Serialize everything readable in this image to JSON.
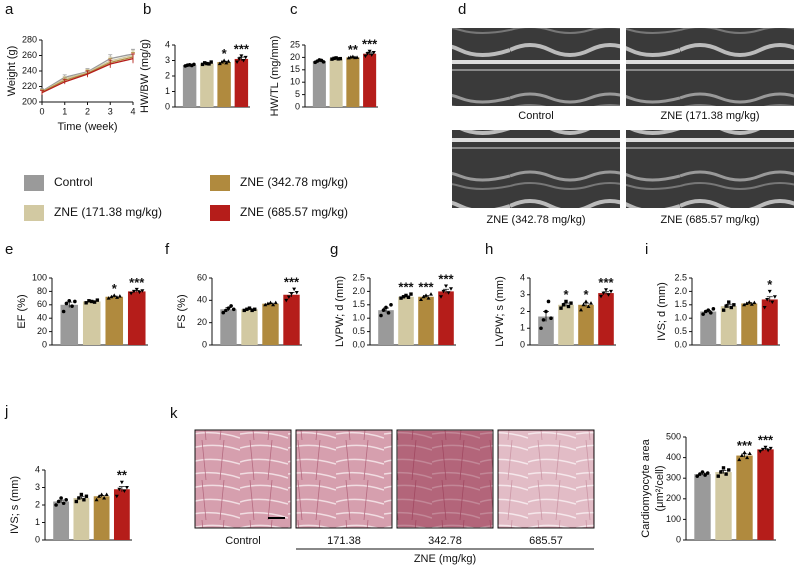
{
  "chart_data": [
    {
      "type": "line",
      "panel": "a",
      "xlabel": "Time (week)",
      "ylabel": "Weight (g)",
      "x": [
        0,
        1,
        2,
        3,
        4
      ],
      "xlim": [
        0,
        4
      ],
      "xticks": [
        0,
        1,
        2,
        3,
        4
      ],
      "ylim": [
        200,
        280
      ],
      "yticks": [
        200,
        220,
        240,
        260,
        280
      ],
      "series": [
        {
          "values": [
            214,
            232,
            239,
            256,
            262
          ],
          "errors": [
            3,
            3,
            4,
            5,
            6
          ]
        },
        {
          "values": [
            213,
            230,
            238,
            253,
            260
          ],
          "errors": [
            3,
            3,
            4,
            5,
            6
          ]
        },
        {
          "values": [
            213,
            228,
            237,
            251,
            258
          ],
          "errors": [
            3,
            3,
            4,
            5,
            6
          ]
        },
        {
          "values": [
            212,
            226,
            236,
            249,
            256
          ],
          "errors": [
            3,
            3,
            4,
            5,
            6
          ]
        }
      ]
    },
    {
      "type": "bar",
      "panel": "b",
      "ylabel": "HW/BW (mg/g)",
      "ylim": [
        0,
        4
      ],
      "yticks": [
        0,
        1,
        2,
        3,
        4
      ],
      "values": [
        2.7,
        2.8,
        2.9,
        3.1
      ],
      "errors": [
        0.03,
        0.03,
        0.05,
        0.12
      ],
      "points": [
        [
          2.65,
          2.7,
          2.72,
          2.68,
          2.75
        ],
        [
          2.75,
          2.85,
          2.8,
          2.78,
          2.9
        ],
        [
          2.8,
          2.9,
          3.0,
          2.85,
          2.95
        ],
        [
          2.9,
          3.1,
          3.3,
          3.0,
          3.2
        ]
      ],
      "annotations": [
        null,
        null,
        "*",
        "***"
      ]
    },
    {
      "type": "bar",
      "panel": "c",
      "ylabel": "HW/TL (mg/mm)",
      "ylim": [
        0,
        25
      ],
      "yticks": [
        0,
        5,
        10,
        15,
        20,
        25
      ],
      "values": [
        18.5,
        19.5,
        20,
        21.5
      ],
      "errors": [
        0.3,
        0.2,
        0.2,
        0.6
      ],
      "points": [
        [
          18,
          18.5,
          19,
          18.8,
          18.2
        ],
        [
          19.3,
          19.6,
          19.8,
          19.4,
          19.5
        ],
        [
          19.8,
          20.1,
          20.3,
          19.9,
          20.0
        ],
        [
          20.5,
          21.5,
          22.5,
          21,
          22
        ]
      ],
      "annotations": [
        null,
        null,
        "**",
        "***"
      ]
    },
    {
      "type": "bar",
      "panel": "e",
      "ylabel": "EF (%)",
      "ylim": [
        0,
        100
      ],
      "yticks": [
        0,
        20,
        40,
        60,
        80,
        100
      ],
      "values": [
        60,
        65,
        72,
        80
      ],
      "errors": [
        4,
        1,
        1,
        1.5
      ],
      "points": [
        [
          50,
          62,
          66,
          58,
          65
        ],
        [
          63,
          66,
          65,
          64,
          67
        ],
        [
          70,
          72,
          74,
          71,
          73
        ],
        [
          77,
          80,
          83,
          79,
          81
        ]
      ],
      "annotations": [
        null,
        null,
        "*",
        "***"
      ]
    },
    {
      "type": "bar",
      "panel": "f",
      "ylabel": "FS (%)",
      "ylim": [
        0,
        60
      ],
      "yticks": [
        0,
        20,
        40,
        60
      ],
      "values": [
        32,
        32,
        37,
        45
      ],
      "errors": [
        1.5,
        0.5,
        0.5,
        2
      ],
      "points": [
        [
          29,
          31,
          33,
          35,
          32
        ],
        [
          31,
          32,
          33,
          31,
          32
        ],
        [
          36,
          37,
          38,
          36,
          38
        ],
        [
          40,
          43,
          46,
          50,
          47
        ]
      ],
      "annotations": [
        null,
        null,
        null,
        "***"
      ]
    },
    {
      "type": "bar",
      "panel": "g",
      "ylabel": "LVPW; d (mm)",
      "ylim": [
        0,
        2.5
      ],
      "yticks": [
        {
          "value": 0,
          "label": "0.0"
        },
        0.5,
        {
          "value": 1,
          "label": "1.0"
        },
        1.5,
        {
          "value": 2,
          "label": "2.0"
        },
        2.5
      ],
      "values": [
        1.3,
        1.8,
        1.8,
        2.0
      ],
      "errors": [
        0.08,
        0.03,
        0.04,
        0.08
      ],
      "points": [
        [
          1.1,
          1.3,
          1.4,
          1.2,
          1.5
        ],
        [
          1.75,
          1.8,
          1.85,
          1.78,
          1.9
        ],
        [
          1.7,
          1.8,
          1.85,
          1.75,
          1.9
        ],
        [
          1.8,
          2.0,
          2.2,
          1.95,
          2.1
        ]
      ],
      "annotations": [
        null,
        "***",
        "***",
        "***"
      ]
    },
    {
      "type": "bar",
      "panel": "h",
      "ylabel": "LVPW; s (mm)",
      "ylim": [
        0,
        4
      ],
      "yticks": [
        0,
        1,
        2,
        3,
        4
      ],
      "values": [
        1.7,
        2.4,
        2.4,
        3.1
      ],
      "errors": [
        0.3,
        0.1,
        0.1,
        0.08
      ],
      "points": [
        [
          1.0,
          1.5,
          2.0,
          2.6,
          1.6
        ],
        [
          2.2,
          2.4,
          2.6,
          2.3,
          2.5
        ],
        [
          2.1,
          2.4,
          2.6,
          2.3,
          2.5
        ],
        [
          2.9,
          3.1,
          3.3,
          3.0,
          3.2
        ]
      ],
      "annotations": [
        null,
        "*",
        "*",
        "***"
      ]
    },
    {
      "type": "bar",
      "panel": "i",
      "ylabel": "IVS; d (mm)",
      "ylim": [
        0,
        2.5
      ],
      "yticks": [
        {
          "value": 0,
          "label": "0.0"
        },
        0.5,
        {
          "value": 1,
          "label": "1.0"
        },
        1.5,
        {
          "value": 2,
          "label": "2.0"
        },
        2.5
      ],
      "values": [
        1.25,
        1.45,
        1.55,
        1.7
      ],
      "errors": [
        0.04,
        0.07,
        0.03,
        0.1
      ],
      "points": [
        [
          1.15,
          1.25,
          1.3,
          1.2,
          1.35
        ],
        [
          1.3,
          1.45,
          1.6,
          1.4,
          1.5
        ],
        [
          1.5,
          1.55,
          1.6,
          1.52,
          1.58
        ],
        [
          1.4,
          1.7,
          2.0,
          1.6,
          1.8
        ]
      ],
      "annotations": [
        null,
        null,
        null,
        "*"
      ]
    },
    {
      "type": "bar",
      "panel": "j",
      "ylabel": "IVS; s (mm)",
      "ylim": [
        0,
        4
      ],
      "yticks": [
        0,
        1,
        2,
        3,
        4
      ],
      "values": [
        2.2,
        2.4,
        2.5,
        2.9
      ],
      "errors": [
        0.08,
        0.07,
        0.05,
        0.15
      ],
      "points": [
        [
          2.0,
          2.2,
          2.4,
          2.1,
          2.3
        ],
        [
          2.2,
          2.4,
          2.6,
          2.3,
          2.5
        ],
        [
          2.3,
          2.5,
          2.6,
          2.4,
          2.6
        ],
        [
          2.5,
          2.9,
          3.3,
          2.8,
          3.0
        ]
      ],
      "annotations": [
        null,
        null,
        null,
        "**"
      ]
    },
    {
      "type": "bar",
      "ylabel": [
        "Cardiomyocyte area",
        "(μm²/cell)"
      ],
      "ylim": [
        0,
        500
      ],
      "yticks": [
        0,
        100,
        200,
        300,
        400,
        500
      ],
      "values": [
        320,
        330,
        410,
        440
      ],
      "errors": [
        5,
        8,
        8,
        4
      ],
      "points": [
        [
          310,
          320,
          330,
          315,
          325
        ],
        [
          310,
          330,
          350,
          320,
          340
        ],
        [
          390,
          410,
          425,
          400,
          420
        ],
        [
          430,
          440,
          450,
          435,
          445
        ]
      ],
      "annotations": [
        null,
        null,
        "***",
        "***"
      ]
    }
  ],
  "legend": {
    "names": [
      "Control",
      "ZNE (171.38 mg/kg)",
      "ZNE (342.78 mg/kg)",
      "ZNE (685.57 mg/kg)"
    ],
    "colors": [
      "#9a9a9a",
      "#d2c9a2",
      "#b08a3e",
      "#b51d1a"
    ]
  },
  "echo": {
    "panel": "d",
    "labels": [
      "Control",
      "ZNE (171.38 mg/kg)",
      "ZNE (342.78 mg/kg)",
      "ZNE (685.57 mg/kg)"
    ]
  },
  "histology": {
    "panel": "k",
    "labels": [
      "Control",
      "171.38",
      "342.78",
      "685.57"
    ],
    "group_label": "ZNE (mg/kg)"
  }
}
